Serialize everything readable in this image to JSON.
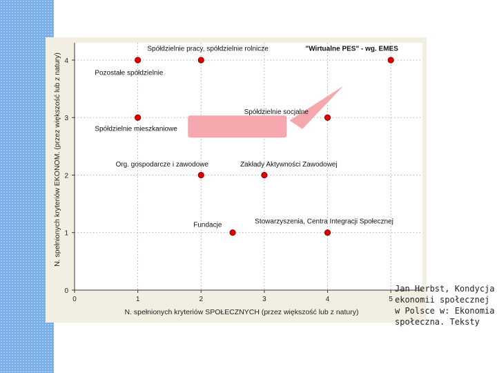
{
  "citation": "Jan Herbst, Kondycja ekonomii społecznej w Polsce w: Ekonomia społeczna. Teksty",
  "colors": {
    "sidebar": "#7aaee8",
    "frame": "#f3eee2",
    "point": "#dd0000",
    "highlight_box": "#f7a8ae"
  },
  "chart_data": {
    "type": "scatter",
    "title": "",
    "xlabel": "N. spełnionych kryteriów SPOŁECZNYCH (przez większość lub z natury)",
    "ylabel": "N. spełnionych kryteriów EKONOM. (przez większość lub z natury)",
    "xlim": [
      0,
      5.5
    ],
    "ylim": [
      0,
      4.3
    ],
    "x_ticks": [
      "0",
      "1",
      "2",
      "3",
      "4",
      "5"
    ],
    "y_ticks": [
      "0",
      "1",
      "2",
      "3",
      "4"
    ],
    "grid": true,
    "points": [
      {
        "x": 1,
        "y": 4
      },
      {
        "x": 2,
        "y": 4
      },
      {
        "x": 5,
        "y": 4
      },
      {
        "x": 1,
        "y": 3
      },
      {
        "x": 4,
        "y": 3
      },
      {
        "x": 2,
        "y": 2
      },
      {
        "x": 3,
        "y": 2
      },
      {
        "x": 2.5,
        "y": 1
      },
      {
        "x": 4,
        "y": 1
      }
    ],
    "annotations": [
      {
        "text": "Spółdzielnie pracy, spółdzielnie rolnicze",
        "x": 1.15,
        "y": 4.16,
        "bold": false
      },
      {
        "text": "\"Wirtualne PES\" - wg. EMES",
        "x": 3.65,
        "y": 4.16,
        "bold": true
      },
      {
        "text": "Pozostałe spółdzielnie",
        "x": 0.32,
        "y": 3.74,
        "bold": false
      },
      {
        "text": "Spółdzielnie socjalne",
        "x": 2.68,
        "y": 3.06,
        "bold": false
      },
      {
        "text": "Spółdzielnie mieszkaniowe",
        "x": 0.32,
        "y": 2.77,
        "bold": false
      },
      {
        "text": "Org. gospodarcze i zawodowe",
        "x": 0.65,
        "y": 2.15,
        "bold": false
      },
      {
        "text": "Zakłady Aktywności Zawodowej",
        "x": 2.62,
        "y": 2.15,
        "bold": false
      },
      {
        "text": "Fundacje",
        "x": 1.88,
        "y": 1.1,
        "bold": false
      },
      {
        "text": "Stowarzyszenia, Centra Integracji Społecznej",
        "x": 2.85,
        "y": 1.16,
        "bold": false
      }
    ]
  }
}
